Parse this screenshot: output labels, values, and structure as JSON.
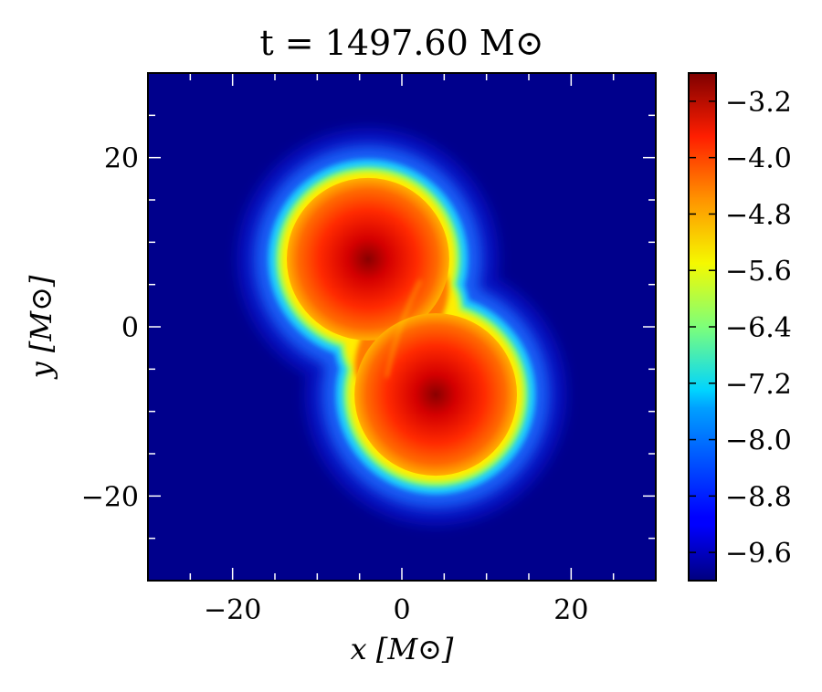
{
  "chart_data": {
    "type": "heatmap",
    "title": "t = 1497.60 M⊙",
    "xlabel": "x [M⊙]",
    "ylabel": "y [M⊙]",
    "xlim": [
      -30,
      30
    ],
    "ylim": [
      -30,
      30
    ],
    "x_ticks": [
      -20,
      0,
      20
    ],
    "y_ticks": [
      -20,
      0,
      20
    ],
    "x_tick_labels": [
      "−20",
      "0",
      "20"
    ],
    "y_tick_labels": [
      "−20",
      "0",
      "20"
    ],
    "colorbar": {
      "colormap": "jet",
      "range": [
        -10.0,
        -2.8
      ],
      "ticks": [
        -3.2,
        -4.0,
        -4.8,
        -5.6,
        -6.4,
        -7.2,
        -8.0,
        -8.8,
        -9.6
      ],
      "tick_labels": [
        "−3.2",
        "−4.0",
        "−4.8",
        "−5.6",
        "−6.4",
        "−7.2",
        "−8.0",
        "−8.8",
        "−9.6"
      ]
    },
    "field_features": [
      {
        "kind": "density-core",
        "x": -4,
        "y": 8,
        "peak": -3.0
      },
      {
        "kind": "density-core",
        "x": 4,
        "y": -8,
        "peak": -3.0
      }
    ],
    "grid": false,
    "legend": "none",
    "background_value": -10.0
  }
}
